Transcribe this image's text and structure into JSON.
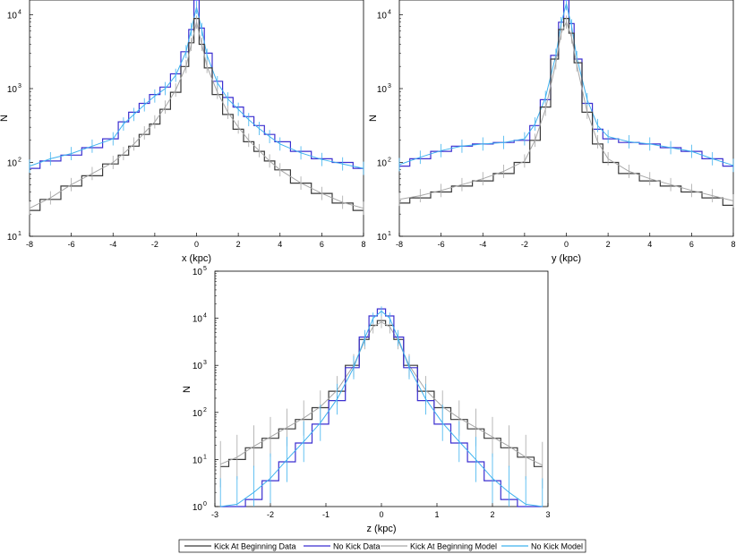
{
  "colors": {
    "kick_data": "#3a3a3a",
    "nokick_data": "#3b2fd0",
    "kick_model": "#a6a6a6",
    "nokick_model": "#3fb2ef",
    "axis": "#000000"
  },
  "legend": {
    "items": [
      {
        "label": "Kick At Beginning Data",
        "color_key": "kick_data"
      },
      {
        "label": "No Kick Data",
        "color_key": "nokick_data"
      },
      {
        "label": "Kick At Beginning Model",
        "color_key": "kick_model"
      },
      {
        "label": "No Kick Model",
        "color_key": "nokick_model"
      }
    ]
  },
  "chart_data": [
    {
      "id": "x",
      "type": "line",
      "title": "",
      "xlabel": "x (kpc)",
      "ylabel": "N",
      "xlim": [
        -8,
        8
      ],
      "ylim_log10": [
        1,
        4.2
      ],
      "xticks": [
        "-8",
        "-6",
        "-4",
        "-2",
        "0",
        "2",
        "4",
        "6",
        "8"
      ],
      "xtick_values": [
        -8,
        -6,
        -4,
        -2,
        0,
        2,
        4,
        6,
        8
      ],
      "yticks": [
        {
          "base": "10",
          "exp": "1",
          "value": 1
        },
        {
          "base": "10",
          "exp": "2",
          "value": 2
        },
        {
          "base": "10",
          "exp": "3",
          "value": 3
        },
        {
          "base": "10",
          "exp": "4",
          "value": 4
        }
      ],
      "x": [
        -8,
        -7,
        -6,
        -5,
        -4,
        -3.5,
        -3,
        -2.5,
        -2,
        -1.5,
        -1,
        -0.5,
        -0.25,
        0,
        0.25,
        0.5,
        1,
        1.5,
        2,
        2.5,
        3,
        3.5,
        4,
        5,
        6,
        7,
        8
      ],
      "series": [
        {
          "name": "No Kick Data",
          "color_key": "nokick_data",
          "style": "step",
          "log10N": [
            1.92,
            2.02,
            2.1,
            2.2,
            2.32,
            2.55,
            2.68,
            2.8,
            2.92,
            3.02,
            3.2,
            3.5,
            3.8,
            4.2,
            3.82,
            3.48,
            3.1,
            2.88,
            2.75,
            2.62,
            2.5,
            2.38,
            2.28,
            2.15,
            2.05,
            2.0,
            1.92
          ]
        },
        {
          "name": "No Kick Model",
          "color_key": "nokick_model",
          "style": "errbar",
          "log10N": [
            1.95,
            2.05,
            2.12,
            2.22,
            2.32,
            2.52,
            2.65,
            2.78,
            2.9,
            3.0,
            3.18,
            3.5,
            3.8,
            4.1,
            3.8,
            3.45,
            3.08,
            2.86,
            2.72,
            2.58,
            2.46,
            2.35,
            2.25,
            2.13,
            2.04,
            1.98,
            1.92
          ]
        },
        {
          "name": "Kick At Beginning Data",
          "color_key": "kick_data",
          "style": "step",
          "log10N": [
            1.35,
            1.5,
            1.68,
            1.82,
            1.98,
            2.1,
            2.22,
            2.38,
            2.52,
            2.72,
            2.95,
            3.3,
            3.62,
            3.95,
            3.6,
            3.28,
            2.92,
            2.65,
            2.45,
            2.28,
            2.15,
            2.02,
            1.9,
            1.72,
            1.58,
            1.45,
            1.35
          ]
        },
        {
          "name": "Kick At Beginning Model",
          "color_key": "kick_model",
          "style": "errbar",
          "log10N": [
            1.38,
            1.52,
            1.7,
            1.85,
            2.0,
            2.12,
            2.25,
            2.4,
            2.55,
            2.75,
            2.98,
            3.3,
            3.6,
            3.9,
            3.6,
            3.3,
            2.95,
            2.68,
            2.48,
            2.3,
            2.16,
            2.02,
            1.9,
            1.72,
            1.58,
            1.46,
            1.38
          ]
        }
      ]
    },
    {
      "id": "y",
      "type": "line",
      "title": "",
      "xlabel": "y (kpc)",
      "ylabel": "N",
      "xlim": [
        -8,
        8
      ],
      "ylim_log10": [
        1,
        4.2
      ],
      "xticks": [
        "-8",
        "-6",
        "-4",
        "-2",
        "0",
        "2",
        "4",
        "6",
        "8"
      ],
      "xtick_values": [
        -8,
        -6,
        -4,
        -2,
        0,
        2,
        4,
        6,
        8
      ],
      "yticks": [
        {
          "base": "10",
          "exp": "1",
          "value": 1
        },
        {
          "base": "10",
          "exp": "2",
          "value": 2
        },
        {
          "base": "10",
          "exp": "3",
          "value": 3
        },
        {
          "base": "10",
          "exp": "4",
          "value": 4
        }
      ],
      "x": [
        -8,
        -7,
        -6,
        -5,
        -4,
        -3,
        -2,
        -1.5,
        -1,
        -0.5,
        -0.25,
        0,
        0.25,
        0.5,
        1,
        1.5,
        2,
        3,
        4,
        5,
        6,
        7,
        8
      ],
      "series": [
        {
          "name": "No Kick Data",
          "color_key": "nokick_data",
          "style": "step",
          "log10N": [
            1.95,
            2.05,
            2.15,
            2.22,
            2.25,
            2.27,
            2.3,
            2.5,
            2.85,
            3.45,
            3.9,
            4.2,
            3.88,
            3.4,
            2.8,
            2.45,
            2.32,
            2.27,
            2.25,
            2.2,
            2.15,
            2.05,
            1.95
          ]
        },
        {
          "name": "No Kick Model",
          "color_key": "nokick_model",
          "style": "errbar",
          "log10N": [
            1.97,
            2.07,
            2.16,
            2.22,
            2.25,
            2.27,
            2.32,
            2.52,
            2.88,
            3.45,
            3.88,
            4.15,
            3.85,
            3.42,
            2.85,
            2.5,
            2.35,
            2.28,
            2.25,
            2.2,
            2.15,
            2.05,
            1.96
          ]
        },
        {
          "name": "Kick At Beginning Data",
          "color_key": "kick_data",
          "style": "step",
          "log10N": [
            1.45,
            1.52,
            1.6,
            1.68,
            1.75,
            1.85,
            2.0,
            2.3,
            2.75,
            3.4,
            3.8,
            3.95,
            3.75,
            3.35,
            2.68,
            2.25,
            2.0,
            1.85,
            1.75,
            1.68,
            1.6,
            1.52,
            1.42
          ]
        },
        {
          "name": "Kick At Beginning Model",
          "color_key": "kick_model",
          "style": "errbar",
          "log10N": [
            1.5,
            1.55,
            1.62,
            1.7,
            1.78,
            1.88,
            2.02,
            2.3,
            2.72,
            3.35,
            3.75,
            3.9,
            3.7,
            3.32,
            2.68,
            2.28,
            2.05,
            1.88,
            1.78,
            1.7,
            1.62,
            1.55,
            1.48
          ]
        }
      ]
    },
    {
      "id": "z",
      "type": "line",
      "title": "",
      "xlabel": "z (kpc)",
      "ylabel": "N",
      "xlim": [
        -3,
        3
      ],
      "ylim_log10": [
        0,
        5
      ],
      "xticks": [
        "-3",
        "-2",
        "-1",
        "0",
        "1",
        "2",
        "3"
      ],
      "xtick_values": [
        -3,
        -2,
        -1,
        0,
        1,
        2,
        3
      ],
      "yticks": [
        {
          "base": "10",
          "exp": "0",
          "value": 0
        },
        {
          "base": "10",
          "exp": "1",
          "value": 1
        },
        {
          "base": "10",
          "exp": "2",
          "value": 2
        },
        {
          "base": "10",
          "exp": "3",
          "value": 3
        },
        {
          "base": "10",
          "exp": "4",
          "value": 4
        },
        {
          "base": "10",
          "exp": "5",
          "value": 5
        }
      ],
      "x": [
        -2.9,
        -2.6,
        -2.3,
        -2.0,
        -1.7,
        -1.4,
        -1.1,
        -0.8,
        -0.5,
        -0.3,
        -0.15,
        0,
        0.15,
        0.3,
        0.5,
        0.8,
        1.1,
        1.4,
        1.7,
        2.0,
        2.3,
        2.6,
        2.9
      ],
      "series": [
        {
          "name": "Kick At Beginning Data",
          "color_key": "kick_data",
          "style": "step",
          "log10N": [
            0.85,
            1.0,
            1.25,
            1.45,
            1.65,
            1.85,
            2.1,
            2.45,
            3.0,
            3.55,
            3.85,
            3.95,
            3.85,
            3.55,
            3.0,
            2.45,
            2.1,
            1.85,
            1.65,
            1.45,
            1.25,
            1.05,
            0.85
          ]
        },
        {
          "name": "Kick At Beginning Model",
          "color_key": "kick_model",
          "style": "errbar",
          "log10N": [
            0.9,
            1.05,
            1.28,
            1.48,
            1.68,
            1.88,
            2.12,
            2.47,
            3.0,
            3.52,
            3.82,
            3.92,
            3.82,
            3.52,
            3.0,
            2.47,
            2.12,
            1.88,
            1.68,
            1.48,
            1.28,
            1.05,
            0.88
          ]
        },
        {
          "name": "No Kick Data",
          "color_key": "nokick_data",
          "style": "step",
          "log10N": [
            0,
            0,
            0.15,
            0.55,
            0.95,
            1.35,
            1.75,
            2.25,
            2.95,
            3.6,
            4.05,
            4.2,
            4.05,
            3.6,
            2.95,
            2.25,
            1.75,
            1.35,
            0.95,
            0.55,
            0.15,
            0,
            0
          ]
        },
        {
          "name": "No Kick Model",
          "color_key": "nokick_model",
          "style": "errbar",
          "log10N": [
            0,
            0.05,
            0.3,
            0.6,
            1.0,
            1.38,
            1.78,
            2.28,
            2.95,
            3.58,
            4.0,
            4.15,
            4.0,
            3.58,
            2.95,
            2.28,
            1.78,
            1.38,
            1.0,
            0.6,
            0.3,
            0.05,
            0
          ]
        }
      ]
    }
  ]
}
